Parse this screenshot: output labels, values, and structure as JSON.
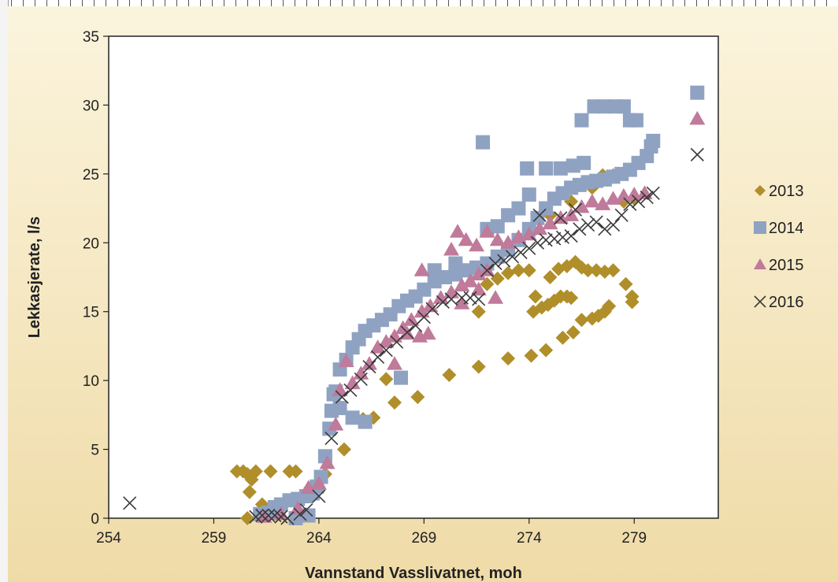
{
  "chart_data": {
    "type": "scatter",
    "title": "",
    "xlabel": "Vannstand Vasslivatnet, moh",
    "ylabel": "Lekkasjerate, l/s",
    "xlim": [
      254,
      283
    ],
    "ylim": [
      0,
      35
    ],
    "xticks": [
      254,
      259,
      264,
      269,
      274,
      279
    ],
    "yticks": [
      0,
      5,
      10,
      15,
      20,
      25,
      30,
      35
    ],
    "grid": false,
    "legend_position": "right",
    "series": [
      {
        "name": "2013",
        "marker": "diamond",
        "color": "#b08e2a",
        "points": [
          [
            260.1,
            3.4
          ],
          [
            260.4,
            3.4
          ],
          [
            260.6,
            3.2
          ],
          [
            260.8,
            2.8
          ],
          [
            261.0,
            3.4
          ],
          [
            260.7,
            1.9
          ],
          [
            261.3,
            1.0
          ],
          [
            260.6,
            0.0
          ],
          [
            261.7,
            3.4
          ],
          [
            262.6,
            3.4
          ],
          [
            262.9,
            3.4
          ],
          [
            263.6,
            2.2
          ],
          [
            264.3,
            3.2
          ],
          [
            265.2,
            5.0
          ],
          [
            266.1,
            7.2
          ],
          [
            266.6,
            7.3
          ],
          [
            267.2,
            10.1
          ],
          [
            267.6,
            8.4
          ],
          [
            268.7,
            8.8
          ],
          [
            270.2,
            10.4
          ],
          [
            271.6,
            11.0
          ],
          [
            273.0,
            11.6
          ],
          [
            274.1,
            11.8
          ],
          [
            274.8,
            12.2
          ],
          [
            275.6,
            13.1
          ],
          [
            276.1,
            13.5
          ],
          [
            276.5,
            14.4
          ],
          [
            277.0,
            14.5
          ],
          [
            277.3,
            14.7
          ],
          [
            277.6,
            15.0
          ],
          [
            277.8,
            15.4
          ],
          [
            278.6,
            17.0
          ],
          [
            278.9,
            15.7
          ],
          [
            278.9,
            16.1
          ],
          [
            271.6,
            15.0
          ],
          [
            272.0,
            17.0
          ],
          [
            272.5,
            17.4
          ],
          [
            273.0,
            17.8
          ],
          [
            273.5,
            18.0
          ],
          [
            274.0,
            18.0
          ],
          [
            274.3,
            16.1
          ],
          [
            274.6,
            15.3
          ],
          [
            274.9,
            15.5
          ],
          [
            275.2,
            15.8
          ],
          [
            275.5,
            16.1
          ],
          [
            275.8,
            16.1
          ],
          [
            276.0,
            16.0
          ],
          [
            274.2,
            15.0
          ],
          [
            275.0,
            17.5
          ],
          [
            275.4,
            18.1
          ],
          [
            275.8,
            18.3
          ],
          [
            276.2,
            18.6
          ],
          [
            276.5,
            18.2
          ],
          [
            276.8,
            18.0
          ],
          [
            277.2,
            18.0
          ],
          [
            277.6,
            17.9
          ],
          [
            278.0,
            18.0
          ],
          [
            275.0,
            22.0
          ],
          [
            276.0,
            23.0
          ],
          [
            277.0,
            24.0
          ],
          [
            277.5,
            24.9
          ],
          [
            278.0,
            24.9
          ],
          [
            278.5,
            23.0
          ],
          [
            279.0,
            23.2
          ]
        ]
      },
      {
        "name": "2014",
        "marker": "square",
        "color": "#8fa2c2",
        "points": [
          [
            261.2,
            0.3
          ],
          [
            261.6,
            0.4
          ],
          [
            261.9,
            0.8
          ],
          [
            262.2,
            1.0
          ],
          [
            262.6,
            1.3
          ],
          [
            263.0,
            1.4
          ],
          [
            263.4,
            1.6
          ],
          [
            263.7,
            1.8
          ],
          [
            263.9,
            2.3
          ],
          [
            264.1,
            3.0
          ],
          [
            264.3,
            4.5
          ],
          [
            264.5,
            6.5
          ],
          [
            264.6,
            7.8
          ],
          [
            264.8,
            9.2
          ],
          [
            265.0,
            10.8
          ],
          [
            265.3,
            11.5
          ],
          [
            265.6,
            12.4
          ],
          [
            265.9,
            13.0
          ],
          [
            266.2,
            13.6
          ],
          [
            266.6,
            14.0
          ],
          [
            267.0,
            14.4
          ],
          [
            267.4,
            14.8
          ],
          [
            267.8,
            15.4
          ],
          [
            268.2,
            15.8
          ],
          [
            268.6,
            16.1
          ],
          [
            269.0,
            16.6
          ],
          [
            269.5,
            17.2
          ],
          [
            270.0,
            17.5
          ],
          [
            270.5,
            17.7
          ],
          [
            271.0,
            18.0
          ],
          [
            271.5,
            18.2
          ],
          [
            272.0,
            18.5
          ],
          [
            272.5,
            19.0
          ],
          [
            273.0,
            19.5
          ],
          [
            273.5,
            20.2
          ],
          [
            274.0,
            21.0
          ],
          [
            274.4,
            21.8
          ],
          [
            274.8,
            22.5
          ],
          [
            275.2,
            23.2
          ],
          [
            275.6,
            23.6
          ],
          [
            276.0,
            24.0
          ],
          [
            276.4,
            24.2
          ],
          [
            276.8,
            24.4
          ],
          [
            277.2,
            24.5
          ],
          [
            277.6,
            24.6
          ],
          [
            278.0,
            24.8
          ],
          [
            278.4,
            25.0
          ],
          [
            278.8,
            25.3
          ],
          [
            279.2,
            25.8
          ],
          [
            279.6,
            26.3
          ],
          [
            279.8,
            27.0
          ],
          [
            279.9,
            27.4
          ],
          [
            271.8,
            27.3
          ],
          [
            273.9,
            25.4
          ],
          [
            274.8,
            25.4
          ],
          [
            275.5,
            25.4
          ],
          [
            276.1,
            25.6
          ],
          [
            276.6,
            25.8
          ],
          [
            276.5,
            28.9
          ],
          [
            277.1,
            29.9
          ],
          [
            277.6,
            29.9
          ],
          [
            278.1,
            29.9
          ],
          [
            278.5,
            29.9
          ],
          [
            278.8,
            28.9
          ],
          [
            279.1,
            28.9
          ],
          [
            282.0,
            30.9
          ],
          [
            267.9,
            10.2
          ],
          [
            266.2,
            7.0
          ],
          [
            265.6,
            7.3
          ],
          [
            265.0,
            8.0
          ],
          [
            264.7,
            9.0
          ],
          [
            262.9,
            0.0
          ],
          [
            263.5,
            0.2
          ],
          [
            272.0,
            21.0
          ],
          [
            272.5,
            21.2
          ],
          [
            273.0,
            22.0
          ],
          [
            273.5,
            22.5
          ],
          [
            274.0,
            23.5
          ],
          [
            269.5,
            18.0
          ],
          [
            270.5,
            18.5
          ]
        ]
      },
      {
        "name": "2015",
        "marker": "triangle",
        "color": "#c07a9a",
        "points": [
          [
            261.4,
            0.1
          ],
          [
            262.2,
            0.3
          ],
          [
            263.0,
            0.7
          ],
          [
            263.5,
            2.2
          ],
          [
            264.0,
            2.5
          ],
          [
            264.4,
            4.0
          ],
          [
            264.8,
            6.8
          ],
          [
            265.0,
            9.3
          ],
          [
            265.3,
            11.4
          ],
          [
            265.6,
            9.8
          ],
          [
            266.0,
            10.5
          ],
          [
            266.4,
            11.2
          ],
          [
            266.8,
            12.4
          ],
          [
            267.2,
            12.8
          ],
          [
            267.6,
            13.2
          ],
          [
            268.0,
            13.8
          ],
          [
            268.4,
            14.4
          ],
          [
            268.9,
            15.0
          ],
          [
            269.3,
            15.4
          ],
          [
            269.8,
            16.0
          ],
          [
            270.3,
            16.4
          ],
          [
            270.8,
            16.9
          ],
          [
            271.2,
            17.2
          ],
          [
            271.6,
            17.7
          ],
          [
            272.0,
            18.0
          ],
          [
            268.2,
            13.4
          ],
          [
            268.8,
            13.2
          ],
          [
            269.2,
            13.4
          ],
          [
            267.6,
            11.2
          ],
          [
            268.9,
            18.0
          ],
          [
            270.3,
            19.5
          ],
          [
            270.6,
            20.8
          ],
          [
            271.0,
            20.2
          ],
          [
            271.5,
            19.8
          ],
          [
            272.0,
            20.8
          ],
          [
            272.5,
            20.2
          ],
          [
            273.0,
            20.0
          ],
          [
            273.5,
            20.4
          ],
          [
            274.0,
            20.6
          ],
          [
            274.5,
            21.0
          ],
          [
            275.0,
            21.4
          ],
          [
            275.5,
            21.8
          ],
          [
            276.0,
            22.0
          ],
          [
            276.5,
            22.6
          ],
          [
            277.0,
            23.0
          ],
          [
            277.5,
            22.8
          ],
          [
            278.0,
            23.2
          ],
          [
            278.5,
            23.4
          ],
          [
            279.0,
            23.5
          ],
          [
            279.5,
            23.6
          ],
          [
            282.0,
            29.0
          ],
          [
            270.8,
            15.6
          ],
          [
            271.6,
            16.6
          ],
          [
            272.4,
            16.0
          ]
        ]
      },
      {
        "name": "2016",
        "marker": "x",
        "color": "#3a3a3a",
        "points": [
          [
            255.0,
            1.1
          ],
          [
            261.0,
            0.1
          ],
          [
            261.3,
            0.2
          ],
          [
            261.6,
            0.2
          ],
          [
            261.9,
            0.2
          ],
          [
            262.2,
            0.1
          ],
          [
            262.5,
            0.0
          ],
          [
            263.1,
            0.3
          ],
          [
            263.4,
            0.6
          ],
          [
            264.0,
            1.6
          ],
          [
            264.6,
            5.8
          ],
          [
            265.1,
            8.8
          ],
          [
            265.5,
            9.3
          ],
          [
            266.0,
            10.1
          ],
          [
            266.4,
            11.0
          ],
          [
            266.8,
            11.7
          ],
          [
            267.2,
            12.2
          ],
          [
            267.7,
            12.8
          ],
          [
            268.2,
            13.5
          ],
          [
            268.6,
            14.0
          ],
          [
            269.0,
            14.6
          ],
          [
            269.4,
            15.2
          ],
          [
            269.9,
            15.7
          ],
          [
            270.3,
            15.9
          ],
          [
            270.8,
            16.0
          ],
          [
            271.2,
            16.0
          ],
          [
            271.6,
            15.9
          ],
          [
            272.0,
            18.0
          ],
          [
            272.4,
            18.5
          ],
          [
            272.8,
            18.7
          ],
          [
            273.2,
            19.0
          ],
          [
            273.6,
            19.3
          ],
          [
            274.0,
            19.6
          ],
          [
            274.4,
            20.0
          ],
          [
            274.8,
            20.2
          ],
          [
            275.2,
            20.3
          ],
          [
            275.6,
            20.4
          ],
          [
            276.0,
            20.5
          ],
          [
            276.4,
            21.0
          ],
          [
            276.8,
            21.3
          ],
          [
            277.2,
            21.5
          ],
          [
            277.6,
            21.0
          ],
          [
            278.0,
            21.3
          ],
          [
            278.4,
            22.0
          ],
          [
            278.8,
            22.8
          ],
          [
            279.2,
            23.0
          ],
          [
            279.6,
            23.3
          ],
          [
            279.9,
            23.6
          ],
          [
            282.0,
            26.4
          ],
          [
            274.5,
            22.0
          ],
          [
            275.5,
            21.8
          ],
          [
            276.2,
            22.4
          ]
        ]
      }
    ]
  }
}
